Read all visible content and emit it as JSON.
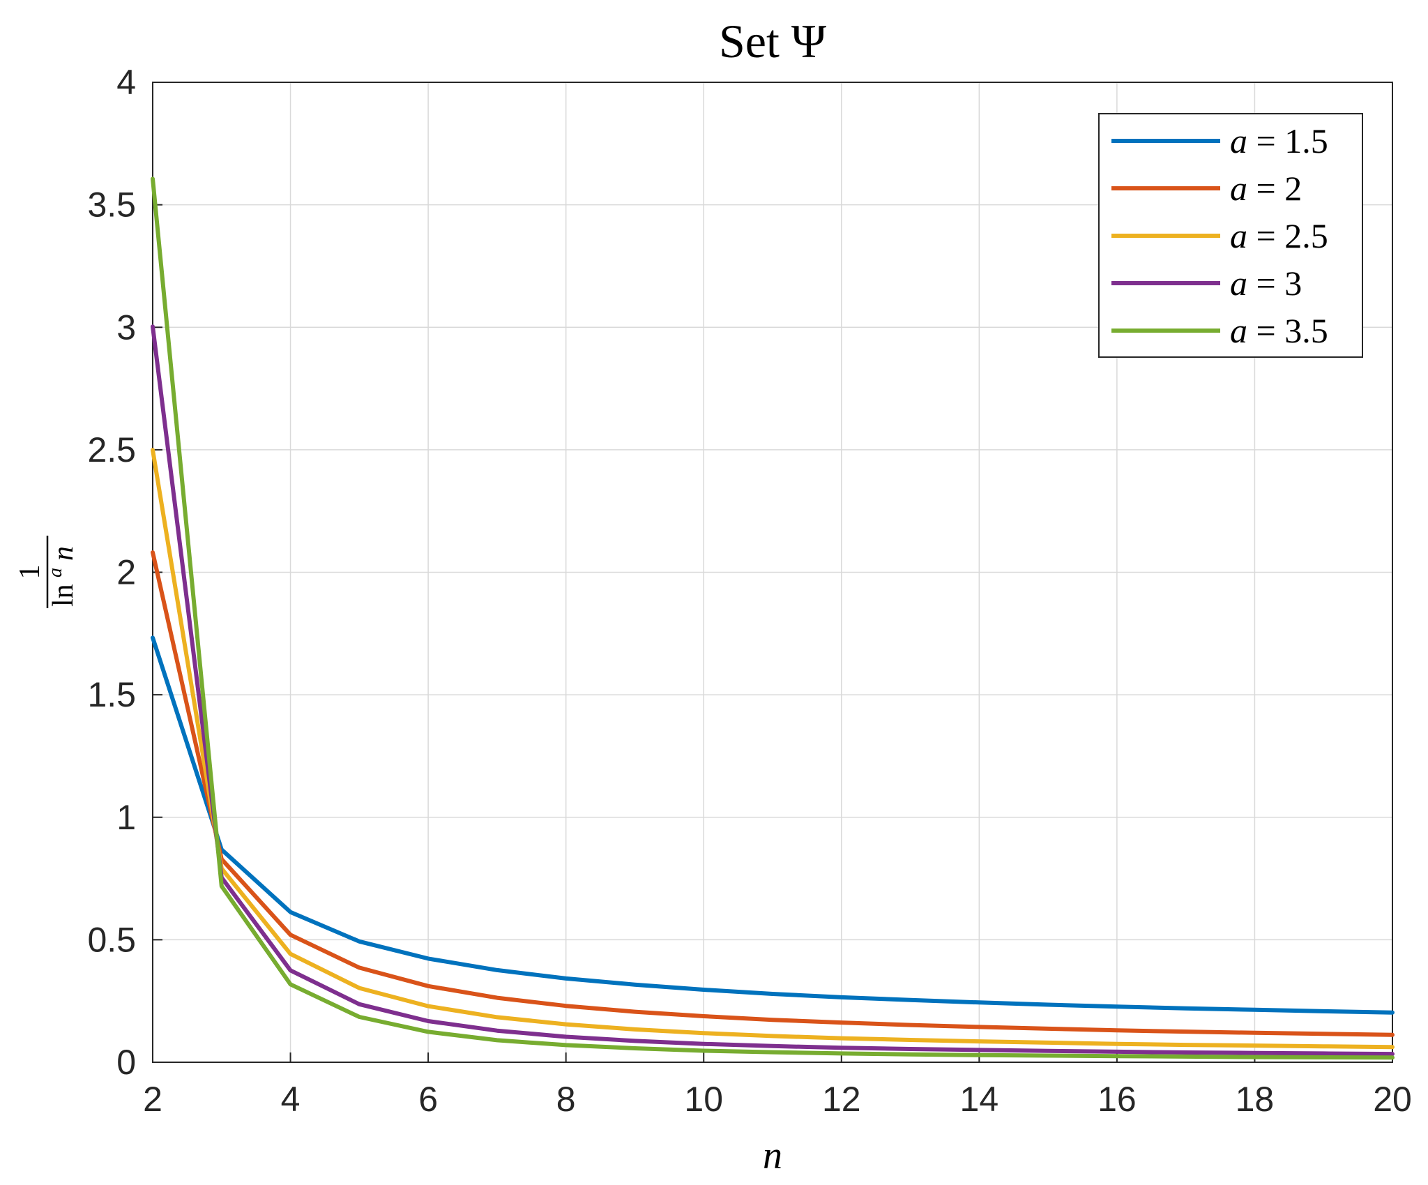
{
  "chart_data": {
    "type": "line",
    "title": "Set Ψ",
    "xlabel": "n",
    "ylabel": {
      "numerator": "1",
      "base": "ln",
      "exponent": "a",
      "variable": "n"
    },
    "xlim": [
      2,
      20
    ],
    "ylim": [
      0,
      4
    ],
    "xticks": [
      "2",
      "4",
      "6",
      "8",
      "10",
      "12",
      "14",
      "16",
      "18",
      "20"
    ],
    "yticks": [
      "0",
      "0.5",
      "1",
      "1.5",
      "2",
      "2.5",
      "3",
      "3.5",
      "4"
    ],
    "grid": true,
    "legend_position": "top-right",
    "x": [
      2,
      3,
      4,
      5,
      6,
      7,
      8,
      9,
      10,
      11,
      12,
      13,
      14,
      15,
      16,
      17,
      18,
      19,
      20
    ],
    "series": [
      {
        "name": "a = 1.5",
        "color": "#0072BD",
        "values": [
          1.733,
          0.868,
          0.613,
          0.493,
          0.423,
          0.376,
          0.342,
          0.317,
          0.296,
          0.279,
          0.265,
          0.254,
          0.244,
          0.235,
          0.227,
          0.22,
          0.214,
          0.208,
          0.203
        ]
      },
      {
        "name": "a = 2",
        "color": "#D95319",
        "values": [
          2.081,
          0.829,
          0.52,
          0.386,
          0.311,
          0.263,
          0.23,
          0.206,
          0.188,
          0.173,
          0.162,
          0.152,
          0.144,
          0.137,
          0.13,
          0.125,
          0.12,
          0.116,
          0.112
        ]
      },
      {
        "name": "a = 2.5",
        "color": "#EDB120",
        "values": [
          2.499,
          0.791,
          0.442,
          0.303,
          0.229,
          0.184,
          0.155,
          0.134,
          0.119,
          0.107,
          0.098,
          0.091,
          0.085,
          0.08,
          0.075,
          0.071,
          0.068,
          0.065,
          0.062
        ]
      },
      {
        "name": "a = 3",
        "color": "#7E2F8E",
        "values": [
          3.003,
          0.754,
          0.375,
          0.237,
          0.168,
          0.129,
          0.104,
          0.087,
          0.075,
          0.066,
          0.059,
          0.054,
          0.05,
          0.046,
          0.043,
          0.04,
          0.038,
          0.036,
          0.034
        ]
      },
      {
        "name": "a = 3.5",
        "color": "#77AC30",
        "values": [
          3.606,
          0.719,
          0.318,
          0.185,
          0.124,
          0.09,
          0.07,
          0.057,
          0.047,
          0.041,
          0.036,
          0.032,
          0.029,
          0.027,
          0.025,
          0.023,
          0.021,
          0.02,
          0.019
        ]
      }
    ]
  }
}
